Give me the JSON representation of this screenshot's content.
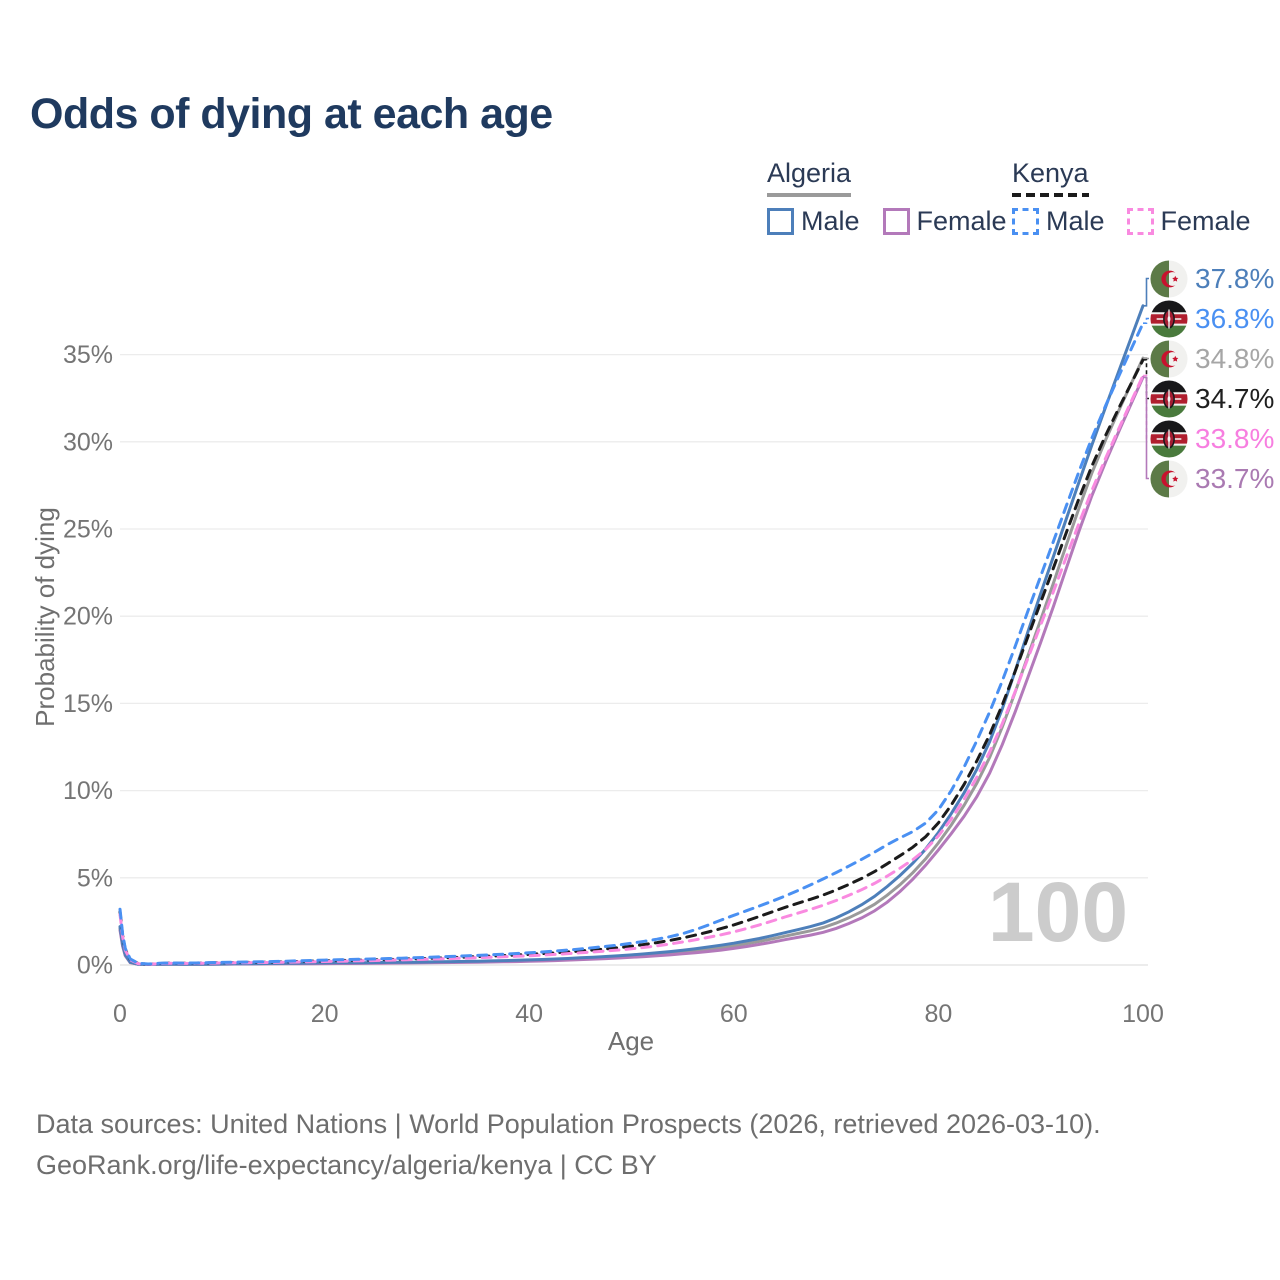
{
  "title": "Odds of dying at each age",
  "legend": {
    "groups": [
      {
        "country": "Algeria",
        "line_style": "solid",
        "line_color": "#9a9a9a",
        "items": [
          {
            "label": "Male",
            "color": "#4d7fba",
            "dash": "solid"
          },
          {
            "label": "Female",
            "color": "#b379ba",
            "dash": "solid"
          }
        ]
      },
      {
        "country": "Kenya",
        "line_style": "dashed",
        "line_color": "#1b1b1b",
        "items": [
          {
            "label": "Male",
            "color": "#4a90f2",
            "dash": "dashed"
          },
          {
            "label": "Female",
            "color": "#f98ae0",
            "dash": "dashed"
          }
        ]
      }
    ]
  },
  "chart_data": {
    "type": "line",
    "title": "Odds of dying at each age",
    "xlabel": "Age",
    "ylabel": "Probability of dying",
    "xlim": [
      0,
      100
    ],
    "ylim": [
      0,
      39
    ],
    "grid": "horizontal",
    "legend_position": "top-right",
    "watermark": "100",
    "xticks": [
      0,
      20,
      40,
      60,
      80,
      100
    ],
    "ytick_values": [
      0,
      5,
      10,
      15,
      20,
      25,
      30,
      35
    ],
    "ytick_labels": [
      "0%",
      "5%",
      "10%",
      "15%",
      "20%",
      "25%",
      "30%",
      "35%"
    ],
    "x": [
      0,
      1,
      5,
      10,
      15,
      20,
      25,
      30,
      35,
      40,
      45,
      50,
      55,
      60,
      65,
      70,
      75,
      80,
      85,
      90,
      95,
      100
    ],
    "series": [
      {
        "key": "algeria_total",
        "name": "Algeria — Both sexes",
        "country": "Algeria",
        "sex": "both",
        "color": "#9a9a9a",
        "dash": "solid",
        "values": [
          2.1,
          0.15,
          0.05,
          0.05,
          0.08,
          0.1,
          0.12,
          0.15,
          0.19,
          0.25,
          0.36,
          0.51,
          0.74,
          1.1,
          1.65,
          2.4,
          4.0,
          7.0,
          11.9,
          19.8,
          28.2,
          34.8
        ]
      },
      {
        "key": "algeria_female",
        "name": "Algeria — Female",
        "country": "Algeria",
        "sex": "female",
        "color": "#b379ba",
        "dash": "solid",
        "values": [
          2.0,
          0.14,
          0.04,
          0.05,
          0.07,
          0.08,
          0.1,
          0.13,
          0.16,
          0.21,
          0.31,
          0.44,
          0.64,
          0.95,
          1.45,
          2.1,
          3.6,
          6.6,
          11.0,
          18.5,
          26.9,
          33.7
        ]
      },
      {
        "key": "algeria_male",
        "name": "Algeria — Male",
        "country": "Algeria",
        "sex": "male",
        "color": "#4d7fba",
        "dash": "solid",
        "values": [
          2.2,
          0.16,
          0.05,
          0.06,
          0.09,
          0.12,
          0.14,
          0.17,
          0.22,
          0.29,
          0.41,
          0.58,
          0.85,
          1.25,
          1.85,
          2.7,
          4.5,
          7.6,
          12.8,
          21.3,
          29.8,
          37.8
        ]
      },
      {
        "key": "kenya_total",
        "name": "Kenya — Both sexes",
        "country": "Kenya",
        "sex": "both",
        "color": "#1b1b1b",
        "dash": "dashed",
        "values": [
          3.05,
          0.32,
          0.11,
          0.13,
          0.17,
          0.24,
          0.3,
          0.38,
          0.48,
          0.61,
          0.8,
          1.08,
          1.55,
          2.3,
          3.3,
          4.3,
          5.8,
          8.15,
          13.2,
          20.8,
          28.6,
          34.7
        ]
      },
      {
        "key": "kenya_female",
        "name": "Kenya — Female",
        "country": "Kenya",
        "sex": "female",
        "color": "#f98ae0",
        "dash": "dashed",
        "values": [
          2.9,
          0.3,
          0.1,
          0.12,
          0.15,
          0.2,
          0.26,
          0.33,
          0.42,
          0.53,
          0.7,
          0.93,
          1.32,
          1.9,
          2.75,
          3.7,
          5.1,
          7.4,
          12.2,
          19.5,
          27.2,
          33.8
        ]
      },
      {
        "key": "kenya_male",
        "name": "Kenya — Male",
        "country": "Kenya",
        "sex": "male",
        "color": "#4a90f2",
        "dash": "dashed",
        "values": [
          3.2,
          0.35,
          0.12,
          0.15,
          0.2,
          0.28,
          0.35,
          0.44,
          0.55,
          0.7,
          0.92,
          1.25,
          1.8,
          2.85,
          3.95,
          5.3,
          6.9,
          8.9,
          14.5,
          22.3,
          30.2,
          36.8
        ]
      }
    ]
  },
  "end_labels": [
    {
      "value": "37.8%",
      "series": "algeria_male",
      "flag": "algeria",
      "color": "#4d7fba"
    },
    {
      "value": "36.8%",
      "series": "kenya_male",
      "flag": "kenya",
      "color": "#4a90f2"
    },
    {
      "value": "34.8%",
      "series": "algeria_total",
      "flag": "algeria",
      "color": "#a6a6a6"
    },
    {
      "value": "34.7%",
      "series": "kenya_total",
      "flag": "kenya",
      "color": "#1f1f1f"
    },
    {
      "value": "33.8%",
      "series": "kenya_female",
      "flag": "kenya",
      "color": "#f77ee0"
    },
    {
      "value": "33.7%",
      "series": "algeria_female",
      "flag": "algeria",
      "color": "#aa7ab2"
    }
  ],
  "footer": {
    "line1": "Data sources: United Nations | World Population Prospects (2026, retrieved 2026-03-10).",
    "line2": "GeoRank.org/life-expectancy/algeria/kenya | CC BY"
  },
  "colors": {
    "title": "#1f3a5f",
    "axis_text": "#757575",
    "grid": "#ececec",
    "watermark": "#cccccc"
  }
}
